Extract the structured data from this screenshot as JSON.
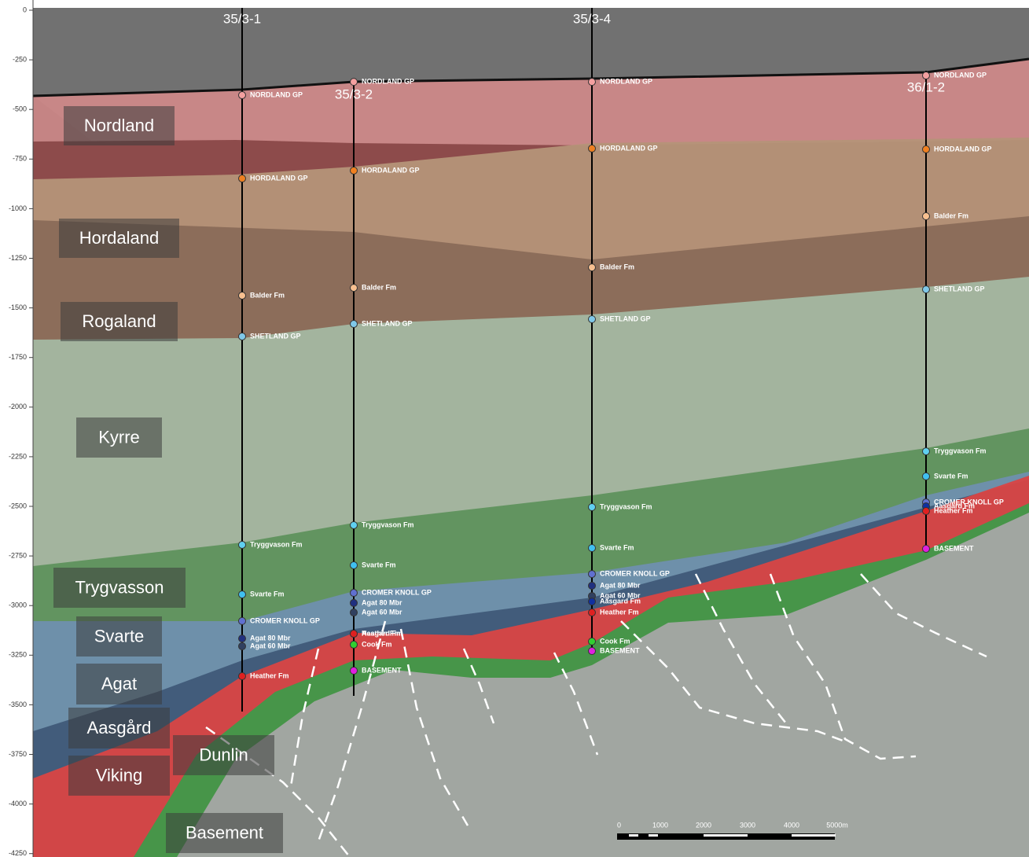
{
  "depth_axis": {
    "range": [
      0,
      -4250
    ],
    "ticks": [
      0,
      -250,
      -500,
      -750,
      -1000,
      -1250,
      -1500,
      -1750,
      -2000,
      -2250,
      -2500,
      -2750,
      -3000,
      -3250,
      -3500,
      -3750,
      -4000,
      -4250
    ]
  },
  "wells": [
    {
      "name": "35/3-1",
      "markers": [
        {
          "name": "NORDLAND GP",
          "depth": -428,
          "color": "#f4a0a0"
        },
        {
          "name": "HORDALAND GP",
          "depth": -848,
          "color": "#f08020"
        },
        {
          "name": "Balder Fm",
          "depth": -1438,
          "color": "#f8c090"
        },
        {
          "name": "SHETLAND GP",
          "depth": -1644,
          "color": "#80c8e8"
        },
        {
          "name": "Tryggvason Fm",
          "depth": -2694,
          "color": "#60d0f0"
        },
        {
          "name": "Svarte Fm",
          "depth": -2944,
          "color": "#40c0f0"
        },
        {
          "name": "CROMER KNOLL GP",
          "depth": -3078,
          "color": "#6070d0"
        },
        {
          "name": "Agat 80 Mbr",
          "depth": -3166,
          "color": "#203080"
        },
        {
          "name": "Agat 60 Mbr",
          "depth": -3205,
          "color": "#304060"
        },
        {
          "name": "Heather Fm",
          "depth": -3356,
          "color": "#e02020"
        }
      ]
    },
    {
      "name": "35/3-2",
      "markers": [
        {
          "name": "NORDLAND GP",
          "depth": -361,
          "color": "#f4a0a0"
        },
        {
          "name": "HORDALAND GP",
          "depth": -808,
          "color": "#f08020"
        },
        {
          "name": "Balder Fm",
          "depth": -1399,
          "color": "#f8c090"
        },
        {
          "name": "SHETLAND GP",
          "depth": -1581,
          "color": "#80c8e8"
        },
        {
          "name": "Tryggvason Fm",
          "depth": -2595,
          "color": "#60d0f0"
        },
        {
          "name": "Svarte Fm",
          "depth": -2797,
          "color": "#40c0f0"
        },
        {
          "name": "CROMER KNOLL GP",
          "depth": -2936,
          "color": "#6070d0"
        },
        {
          "name": "Agat 80 Mbr",
          "depth": -2987,
          "color": "#203080"
        },
        {
          "name": "Agat 60 Mbr",
          "depth": -3035,
          "color": "#304060"
        },
        {
          "name": "Aasgard Fm",
          "depth": -3142,
          "color": "#1030a0"
        },
        {
          "name": "Heather Fm",
          "depth": -3142,
          "color": "#e02020"
        },
        {
          "name": "Cook Fm",
          "depth": -3197,
          "color": "#30d030"
        },
        {
          "name": "BASEMENT",
          "depth": -3328,
          "color": "#e020e0"
        }
      ]
    },
    {
      "name": "35/3-4",
      "markers": [
        {
          "name": "NORDLAND GP",
          "depth": -361,
          "color": "#f4a0a0"
        },
        {
          "name": "HORDALAND GP",
          "depth": -697,
          "color": "#f08020"
        },
        {
          "name": "Balder Fm",
          "depth": -1296,
          "color": "#f8c090"
        },
        {
          "name": "SHETLAND GP",
          "depth": -1557,
          "color": "#80c8e8"
        },
        {
          "name": "Tryggvason Fm",
          "depth": -2504,
          "color": "#60d0f0"
        },
        {
          "name": "Svarte Fm",
          "depth": -2710,
          "color": "#40c0f0"
        },
        {
          "name": "CROMER KNOLL GP",
          "depth": -2841,
          "color": "#6070d0"
        },
        {
          "name": "Agat 80 Mbr",
          "depth": -2900,
          "color": "#203080"
        },
        {
          "name": "Agat 60 Mbr",
          "depth": -2952,
          "color": "#304060"
        },
        {
          "name": "Aasgard Fm",
          "depth": -2980,
          "color": "#1030a0"
        },
        {
          "name": "Heather Fm",
          "depth": -3035,
          "color": "#e02020"
        },
        {
          "name": "Cook Fm",
          "depth": -3181,
          "color": "#30d030"
        },
        {
          "name": "BASEMENT",
          "depth": -3229,
          "color": "#e020e0"
        }
      ]
    },
    {
      "name": "36/1-2",
      "markers": [
        {
          "name": "NORDLAND GP",
          "depth": -329,
          "color": "#f4a0a0"
        },
        {
          "name": "HORDALAND GP",
          "depth": -701,
          "color": "#f08020"
        },
        {
          "name": "Balder Fm",
          "depth": -1038,
          "color": "#f8c090"
        },
        {
          "name": "SHETLAND GP",
          "depth": -1407,
          "color": "#80c8e8"
        },
        {
          "name": "Tryggvason Fm",
          "depth": -2223,
          "color": "#60d0f0"
        },
        {
          "name": "Svarte Fm",
          "depth": -2349,
          "color": "#40c0f0"
        },
        {
          "name": "CROMER KNOLL GP",
          "depth": -2480,
          "color": "#6070d0"
        },
        {
          "name": "Aasgard Fm",
          "depth": -2500,
          "color": "#1030a0"
        },
        {
          "name": "Heather Fm",
          "depth": -2524,
          "color": "#e02020"
        },
        {
          "name": "BASEMENT",
          "depth": -2714,
          "color": "#e020e0"
        }
      ]
    }
  ],
  "formations": [
    "Nordland",
    "Hordaland",
    "Rogaland",
    "Kyrre",
    "Trygvasson",
    "Svarte",
    "Agat",
    "Aasgård",
    "Viking",
    "Dunlin",
    "Basement"
  ],
  "scale_bar": {
    "labels": [
      "0",
      "1000",
      "2000",
      "3000",
      "4000",
      "5000m"
    ]
  }
}
